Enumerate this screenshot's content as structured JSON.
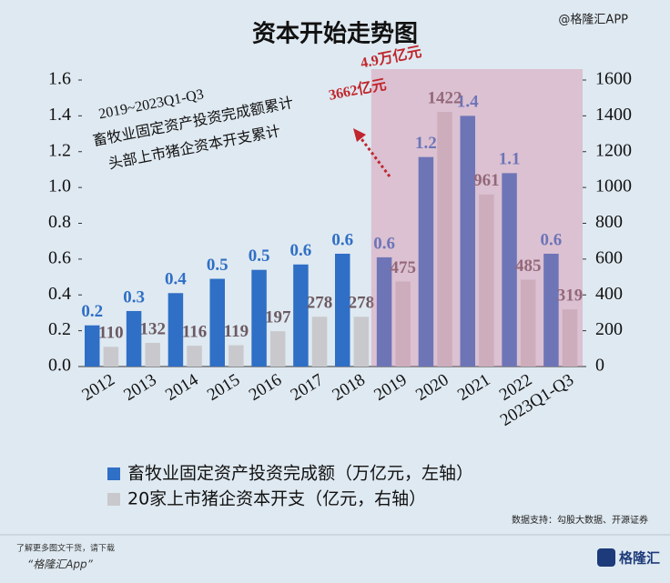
{
  "chart_data": {
    "type": "bar",
    "title": "资本开始走势图",
    "categories": [
      "2012",
      "2013",
      "2014",
      "2015",
      "2016",
      "2017",
      "2018",
      "2019",
      "2020",
      "2021",
      "2022",
      "2023Q1-Q3"
    ],
    "series": [
      {
        "name": "畜牧业固定资产投资完成额（万亿元，左轴）",
        "color": "#2f6fc6",
        "values": [
          0.23,
          0.31,
          0.41,
          0.49,
          0.54,
          0.57,
          0.63,
          0.61,
          1.17,
          1.4,
          1.08,
          0.63
        ],
        "value_labels": [
          "0.2",
          "0.3",
          "0.4",
          "0.5",
          "0.5",
          "0.6",
          "0.6",
          "0.6",
          "1.2",
          "1.4",
          "1.1",
          "0.6"
        ]
      },
      {
        "name": "20家上市猪企资本开支（亿元，右轴）",
        "color": "#c9c9cd",
        "axis": "y2",
        "values": [
          110,
          132,
          116,
          119,
          197,
          278,
          278,
          475,
          1422,
          961,
          485,
          319
        ]
      }
    ],
    "ylim": [
      0,
      1.6
    ],
    "yticks": [
      {
        "value": 0,
        "label": "0.0"
      },
      0.2,
      0.4,
      0.6,
      0.8,
      {
        "value": 1,
        "label": "1.0"
      },
      1.2,
      1.4,
      1.6
    ],
    "y2lim": [
      0,
      1600
    ],
    "y2ticks": [
      0,
      200,
      400,
      600,
      800,
      1000,
      1200,
      1400,
      1600
    ],
    "annotations": [
      "2019~2023Q1-Q3",
      "畜牧业固定资产投资完成额累计",
      "4.9万亿元",
      "头部上市猪企资本开支累计",
      "3662亿元"
    ],
    "source": "数据支持：勾股大数据、开源证券",
    "watermark": "@格隆汇APP",
    "footer": [
      "了解更多图文干货，请下载",
      "“格隆汇App”"
    ],
    "logo": "格隆汇"
  }
}
